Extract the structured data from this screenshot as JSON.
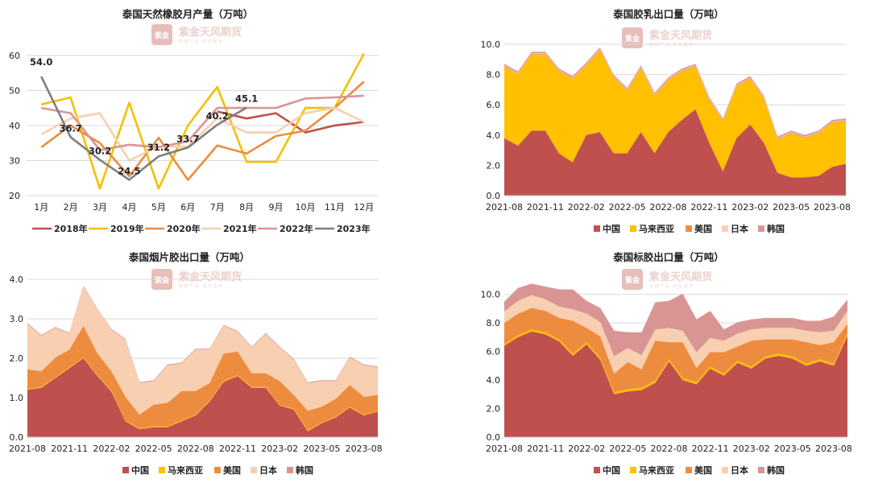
{
  "watermark": {
    "brand": "紫金天风期货",
    "sub": "金 融 产 品  · 研 究 服 务",
    "seal": "紫金",
    "color": "#e3b3ad"
  },
  "chart_data": [
    {
      "id": "tl",
      "type": "line",
      "title": "泰国天然橡胶月产量（万吨）",
      "categories": [
        "1月",
        "2月",
        "3月",
        "4月",
        "5月",
        "6月",
        "7月",
        "8月",
        "9月",
        "10月",
        "11月",
        "12月"
      ],
      "ylim": [
        20,
        65
      ],
      "yticks": [
        20,
        30,
        40,
        50,
        60
      ],
      "series": [
        {
          "name": "2018年",
          "color": "#c0504d",
          "values": [
            null,
            null,
            null,
            null,
            null,
            null,
            44.0,
            42.0,
            43.5,
            38.0,
            40.0,
            41.0
          ]
        },
        {
          "name": "2019年",
          "color": "#f5c000",
          "values": [
            46.0,
            48.0,
            22.0,
            46.5,
            22.0,
            40.0,
            51.0,
            29.6,
            29.6,
            45.0,
            45.0,
            60.5
          ]
        },
        {
          "name": "2020年",
          "color": "#ed8c3f",
          "values": [
            33.8,
            40.0,
            35.0,
            25.5,
            36.5,
            24.5,
            34.3,
            32.0,
            37.0,
            38.5,
            45.0,
            52.5
          ]
        },
        {
          "name": "2021年",
          "color": "#f8cfb0",
          "values": [
            37.5,
            42.0,
            43.5,
            30.0,
            34.0,
            34.0,
            42.0,
            38.0,
            38.0,
            43.5,
            45.0,
            41.0
          ]
        },
        {
          "name": "2022年",
          "color": "#d99594",
          "values": [
            45.0,
            43.5,
            33.0,
            34.5,
            33.8,
            35.5,
            45.0,
            45.0,
            45.0,
            47.7,
            48.0,
            48.5
          ]
        },
        {
          "name": "2023年",
          "color": "#7f7f7f",
          "values": [
            54.0,
            36.7,
            30.2,
            24.5,
            31.2,
            33.7,
            40.2,
            45.1,
            null,
            null,
            null,
            null
          ]
        }
      ],
      "labelSeries": "2023年",
      "dataLabels": [
        "54.0",
        "36.7",
        "30.2",
        "24.5",
        "31.2",
        "33.7",
        "40.2",
        "45.1"
      ]
    },
    {
      "id": "tr",
      "type": "area",
      "title": "泰国胶乳出口量（万吨）",
      "ylim": [
        0,
        10
      ],
      "yticks": [
        "0.0",
        "2.0",
        "4.0",
        "6.0",
        "8.0",
        "10.0"
      ],
      "xticks": [
        "2021-08",
        "2021-11",
        "2022-02",
        "2022-05",
        "2022-08",
        "2022-11",
        "2023-02",
        "2023-05",
        "2023-08"
      ],
      "series": [
        {
          "name": "中国",
          "color": "#c0504d",
          "values": [
            3.8,
            3.3,
            4.3,
            4.3,
            2.8,
            2.2,
            4.0,
            4.2,
            2.8,
            2.8,
            4.2,
            2.8,
            4.2,
            5.0,
            5.7,
            3.5,
            1.6,
            3.8,
            4.7,
            3.5,
            1.5,
            1.2,
            1.2,
            1.3,
            1.9,
            2.1
          ]
        },
        {
          "name": "马来西亚",
          "color": "#ffc000",
          "values": [
            4.7,
            4.7,
            5.0,
            5.0,
            5.4,
            5.5,
            4.6,
            5.4,
            5.0,
            4.1,
            4.2,
            3.8,
            3.4,
            3.2,
            2.8,
            2.8,
            3.3,
            3.4,
            3.0,
            2.9,
            2.2,
            2.9,
            2.6,
            2.8,
            2.9,
            2.8
          ]
        },
        {
          "name": "美国",
          "color": "#ed8c3f",
          "values": [
            0.05,
            0.05,
            0.05,
            0.05,
            0.05,
            0.05,
            0.05,
            0.05,
            0.05,
            0.05,
            0.05,
            0.05,
            0.05,
            0.05,
            0.05,
            0.05,
            0.05,
            0.05,
            0.05,
            0.05,
            0.05,
            0.05,
            0.05,
            0.05,
            0.05,
            0.05
          ]
        },
        {
          "name": "日本",
          "color": "#f8cfb0",
          "values": [
            0.05,
            0.05,
            0.05,
            0.05,
            0.05,
            0.05,
            0.05,
            0.05,
            0.05,
            0.05,
            0.05,
            0.05,
            0.05,
            0.05,
            0.05,
            0.05,
            0.05,
            0.05,
            0.05,
            0.05,
            0.05,
            0.05,
            0.05,
            0.05,
            0.05,
            0.05
          ]
        },
        {
          "name": "韩国",
          "color": "#d99594",
          "values": [
            0.1,
            0.1,
            0.1,
            0.1,
            0.1,
            0.1,
            0.1,
            0.1,
            0.1,
            0.1,
            0.1,
            0.1,
            0.1,
            0.1,
            0.1,
            0.1,
            0.1,
            0.1,
            0.1,
            0.1,
            0.1,
            0.1,
            0.1,
            0.1,
            0.1,
            0.1
          ]
        }
      ]
    },
    {
      "id": "bl",
      "type": "area",
      "title": "泰国烟片胶出口量（万吨）",
      "ylim": [
        0,
        4
      ],
      "yticks": [
        "0.0",
        "1.0",
        "2.0",
        "3.0",
        "4.0"
      ],
      "xticks": [
        "2021-08",
        "2021-11",
        "2022-02",
        "2022-05",
        "2022-08",
        "2022-11",
        "2023-02",
        "2023-05",
        "2023-08"
      ],
      "series": [
        {
          "name": "中国",
          "color": "#c0504d",
          "values": [
            1.2,
            1.25,
            1.5,
            1.75,
            2.0,
            1.55,
            1.15,
            0.4,
            0.2,
            0.25,
            0.25,
            0.4,
            0.55,
            0.9,
            1.4,
            1.55,
            1.25,
            1.25,
            0.8,
            0.7,
            0.15,
            0.35,
            0.5,
            0.75,
            0.55,
            0.65
          ]
        },
        {
          "name": "马来西亚",
          "color": "#ffc000",
          "values": [
            0.02,
            0.02,
            0.02,
            0.02,
            0.02,
            0.02,
            0.02,
            0.02,
            0.02,
            0.02,
            0.02,
            0.02,
            0.02,
            0.02,
            0.02,
            0.02,
            0.02,
            0.02,
            0.02,
            0.02,
            0.02,
            0.02,
            0.02,
            0.02,
            0.02,
            0.02
          ]
        },
        {
          "name": "美国",
          "color": "#ed8c3f",
          "values": [
            0.5,
            0.4,
            0.5,
            0.45,
            0.8,
            0.55,
            0.5,
            0.6,
            0.35,
            0.55,
            0.6,
            0.75,
            0.6,
            0.45,
            0.7,
            0.6,
            0.35,
            0.35,
            0.6,
            0.35,
            0.5,
            0.4,
            0.45,
            0.55,
            0.45,
            0.4
          ]
        },
        {
          "name": "日本",
          "color": "#f8cfb0",
          "values": [
            1.15,
            0.9,
            0.75,
            0.4,
            1.0,
            1.1,
            1.05,
            1.45,
            0.8,
            0.6,
            0.95,
            0.7,
            1.05,
            0.85,
            0.7,
            0.5,
            0.65,
            1.0,
            0.85,
            0.9,
            0.7,
            0.65,
            0.45,
            0.7,
            0.8,
            0.7
          ]
        },
        {
          "name": "韩国",
          "color": "#d99594",
          "values": [
            0.02,
            0.02,
            0.02,
            0.02,
            0.02,
            0.02,
            0.02,
            0.02,
            0.02,
            0.02,
            0.02,
            0.02,
            0.02,
            0.02,
            0.02,
            0.02,
            0.02,
            0.02,
            0.02,
            0.02,
            0.02,
            0.02,
            0.02,
            0.02,
            0.02,
            0.02
          ]
        }
      ]
    },
    {
      "id": "br",
      "type": "area",
      "title": "泰国标胶出口量（万吨）",
      "ylim": [
        0,
        11
      ],
      "yticks": [
        "0.0",
        "2.0",
        "4.0",
        "6.0",
        "8.0",
        "10.0"
      ],
      "xticks": [
        "2021-08",
        "2021-11",
        "2022-02",
        "2022-05",
        "2022-08",
        "2022-11",
        "2023-02",
        "2023-05",
        "2023-08"
      ],
      "series": [
        {
          "name": "中国",
          "color": "#c0504d",
          "values": [
            6.4,
            7.0,
            7.4,
            7.2,
            6.7,
            5.7,
            6.5,
            5.4,
            3.0,
            3.2,
            3.3,
            3.8,
            5.3,
            4.0,
            3.7,
            4.8,
            4.3,
            5.2,
            4.8,
            5.5,
            5.7,
            5.5,
            5.0,
            5.3,
            5.0,
            7.1
          ]
        },
        {
          "name": "马来西亚",
          "color": "#ffc000",
          "values": [
            0.1,
            0.15,
            0.15,
            0.15,
            0.15,
            0.15,
            0.15,
            0.15,
            0.15,
            0.15,
            0.15,
            0.15,
            0.15,
            0.15,
            0.15,
            0.15,
            0.15,
            0.15,
            0.15,
            0.15,
            0.15,
            0.15,
            0.15,
            0.15,
            0.15,
            0.15
          ]
        },
        {
          "name": "美国",
          "color": "#ed8c3f",
          "values": [
            1.5,
            1.5,
            1.5,
            1.5,
            1.5,
            2.3,
            1.0,
            1.5,
            1.3,
            1.9,
            1.3,
            2.8,
            1.2,
            2.5,
            1.0,
            1.0,
            1.5,
            1.0,
            1.8,
            1.2,
            1.0,
            1.2,
            1.5,
            1.0,
            1.5,
            0.7
          ]
        },
        {
          "name": "日本",
          "color": "#f8cfb0",
          "values": [
            0.8,
            0.9,
            0.9,
            0.8,
            0.8,
            0.8,
            1.0,
            1.0,
            1.2,
            1.0,
            1.0,
            0.8,
            1.0,
            0.8,
            1.1,
            1.0,
            0.8,
            0.9,
            0.8,
            0.8,
            0.8,
            0.8,
            0.8,
            0.9,
            0.8,
            0.9
          ]
        },
        {
          "name": "韩国",
          "color": "#d99594",
          "values": [
            0.7,
            0.9,
            0.8,
            0.9,
            1.2,
            1.4,
            0.9,
            1.0,
            1.8,
            1.1,
            1.6,
            1.9,
            1.9,
            2.6,
            2.3,
            1.9,
            0.8,
            0.8,
            0.7,
            0.7,
            0.7,
            0.7,
            0.7,
            0.8,
            1.0,
            0.8
          ]
        }
      ]
    }
  ]
}
